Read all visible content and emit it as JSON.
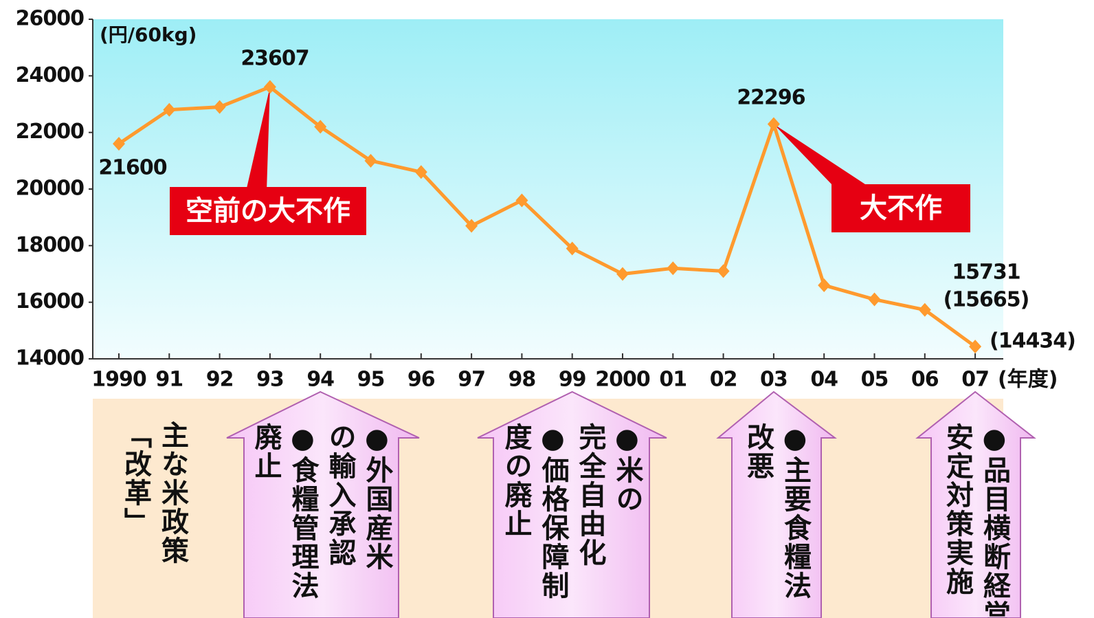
{
  "chart_data": {
    "type": "line",
    "y_label": "(円/60kg)",
    "x_unit": "(年度)",
    "categories": [
      "1990",
      "91",
      "92",
      "93",
      "94",
      "95",
      "96",
      "97",
      "98",
      "99",
      "2000",
      "01",
      "02",
      "03",
      "04",
      "05",
      "06",
      "07"
    ],
    "series": [
      {
        "color": "#ff9a2e",
        "values": [
          21600,
          22800,
          22900,
          23607,
          22200,
          21000,
          20600,
          18700,
          19600,
          17900,
          17000,
          17200,
          17100,
          22296,
          16600,
          16100,
          15731,
          14434
        ],
        "value_labels": [
          "21600",
          null,
          null,
          "23607",
          null,
          null,
          null,
          null,
          null,
          null,
          null,
          null,
          null,
          "22296",
          null,
          null,
          "15731",
          "(14434)"
        ]
      }
    ],
    "annotations": [
      "(15665)",
      "空前の大不作",
      "大不作"
    ],
    "ylim": [
      14000,
      26000
    ],
    "yticks": [
      14000,
      16000,
      18000,
      20000,
      22000,
      24000,
      26000
    ]
  },
  "policy_panel": {
    "label": [
      "主な米政策",
      "「改革」"
    ],
    "arrows": [
      {
        "year": "94",
        "columns": [
          "●外国産米",
          "の輸入承認",
          "●食糧管理法",
          "廃止"
        ]
      },
      {
        "year": "99",
        "columns": [
          "●米の",
          "完全自由化",
          "●価格保障制",
          "度の廃止"
        ]
      },
      {
        "year": "03",
        "columns": [
          "●主要食糧法",
          "改悪"
        ]
      },
      {
        "year": "07",
        "columns": [
          "●品目横断経営",
          "安定対策実施"
        ]
      }
    ]
  }
}
